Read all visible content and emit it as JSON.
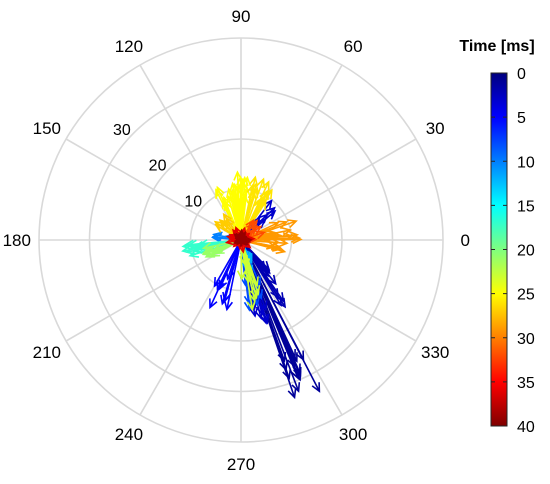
{
  "chart_data": {
    "type": "polar-quiver",
    "coordinate_system": "polar",
    "angle_axis": {
      "unit": "degrees",
      "ticks": [
        0,
        30,
        60,
        90,
        120,
        150,
        180,
        210,
        240,
        270,
        300,
        330
      ],
      "tick_labels": [
        "0",
        "30",
        "60",
        "90",
        "120",
        "150",
        "180",
        "210",
        "240",
        "270",
        "300",
        "330"
      ]
    },
    "radial_axis": {
      "range": [
        0,
        40
      ],
      "rings": [
        10,
        20,
        30,
        40
      ],
      "tick_labels": [
        "10",
        "20",
        "30"
      ],
      "label_angle": 135
    },
    "grid": true,
    "colorbar": {
      "title": "Time [ms]",
      "range": [
        0,
        40
      ],
      "ticks": [
        0,
        5,
        10,
        15,
        20,
        25,
        30,
        35,
        40
      ],
      "tick_labels": [
        "0",
        "5",
        "10",
        "15",
        "20",
        "25",
        "30",
        "35",
        "40"
      ],
      "direction": "top-to-bottom",
      "colormap": "jet",
      "colors": [
        "#00007f",
        "#0000ff",
        "#007fff",
        "#00ffff",
        "#7fff7f",
        "#ffff00",
        "#ff7f00",
        "#ff0000",
        "#7f0000"
      ]
    },
    "vector_groups": [
      {
        "time_ms": 1,
        "angle_range": [
          -72,
          -62
        ],
        "r_range": [
          25,
          34
        ],
        "count": 14
      },
      {
        "time_ms": 2,
        "angle_range": [
          -60,
          -40
        ],
        "r_range": [
          5,
          16
        ],
        "count": 10
      },
      {
        "time_ms": 3,
        "angle_range": [
          -80,
          -70
        ],
        "r_range": [
          12,
          20
        ],
        "count": 8
      },
      {
        "time_ms": 3,
        "angle_range": [
          35,
          55
        ],
        "r_range": [
          5,
          10
        ],
        "count": 6
      },
      {
        "time_ms": 5,
        "angle_range": [
          -120,
          -100
        ],
        "r_range": [
          8,
          15
        ],
        "count": 8
      },
      {
        "time_ms": 8,
        "angle_range": [
          -85,
          -65
        ],
        "r_range": [
          8,
          14
        ],
        "count": 8
      },
      {
        "time_ms": 10,
        "angle_range": [
          165,
          180
        ],
        "r_range": [
          3,
          6
        ],
        "count": 5
      },
      {
        "time_ms": 12,
        "angle_range": [
          -78,
          -62
        ],
        "r_range": [
          4,
          10
        ],
        "count": 8
      },
      {
        "time_ms": 17,
        "angle_range": [
          -175,
          -158
        ],
        "r_range": [
          8,
          12
        ],
        "count": 12
      },
      {
        "time_ms": 21,
        "angle_range": [
          -170,
          -150
        ],
        "r_range": [
          4,
          8
        ],
        "count": 10
      },
      {
        "time_ms": 23,
        "angle_range": [
          -90,
          -70
        ],
        "r_range": [
          4,
          14
        ],
        "count": 10
      },
      {
        "time_ms": 25,
        "angle_range": [
          82,
          118
        ],
        "r_range": [
          8,
          14
        ],
        "count": 24
      },
      {
        "time_ms": 26,
        "angle_range": [
          55,
          80
        ],
        "r_range": [
          8,
          13
        ],
        "count": 14
      },
      {
        "time_ms": 27,
        "angle_range": [
          120,
          150
        ],
        "r_range": [
          4,
          7
        ],
        "count": 8
      },
      {
        "time_ms": 29,
        "angle_range": [
          -15,
          30
        ],
        "r_range": [
          6,
          12
        ],
        "count": 22
      },
      {
        "time_ms": 32,
        "angle_range": [
          0,
          60
        ],
        "r_range": [
          2,
          5
        ],
        "count": 12
      },
      {
        "time_ms": 36,
        "angle_range": [
          0,
          360
        ],
        "r_range": [
          1,
          3
        ],
        "count": 30
      },
      {
        "time_ms": 39,
        "angle_range": [
          0,
          360
        ],
        "r_range": [
          0.5,
          2
        ],
        "count": 20
      }
    ]
  }
}
